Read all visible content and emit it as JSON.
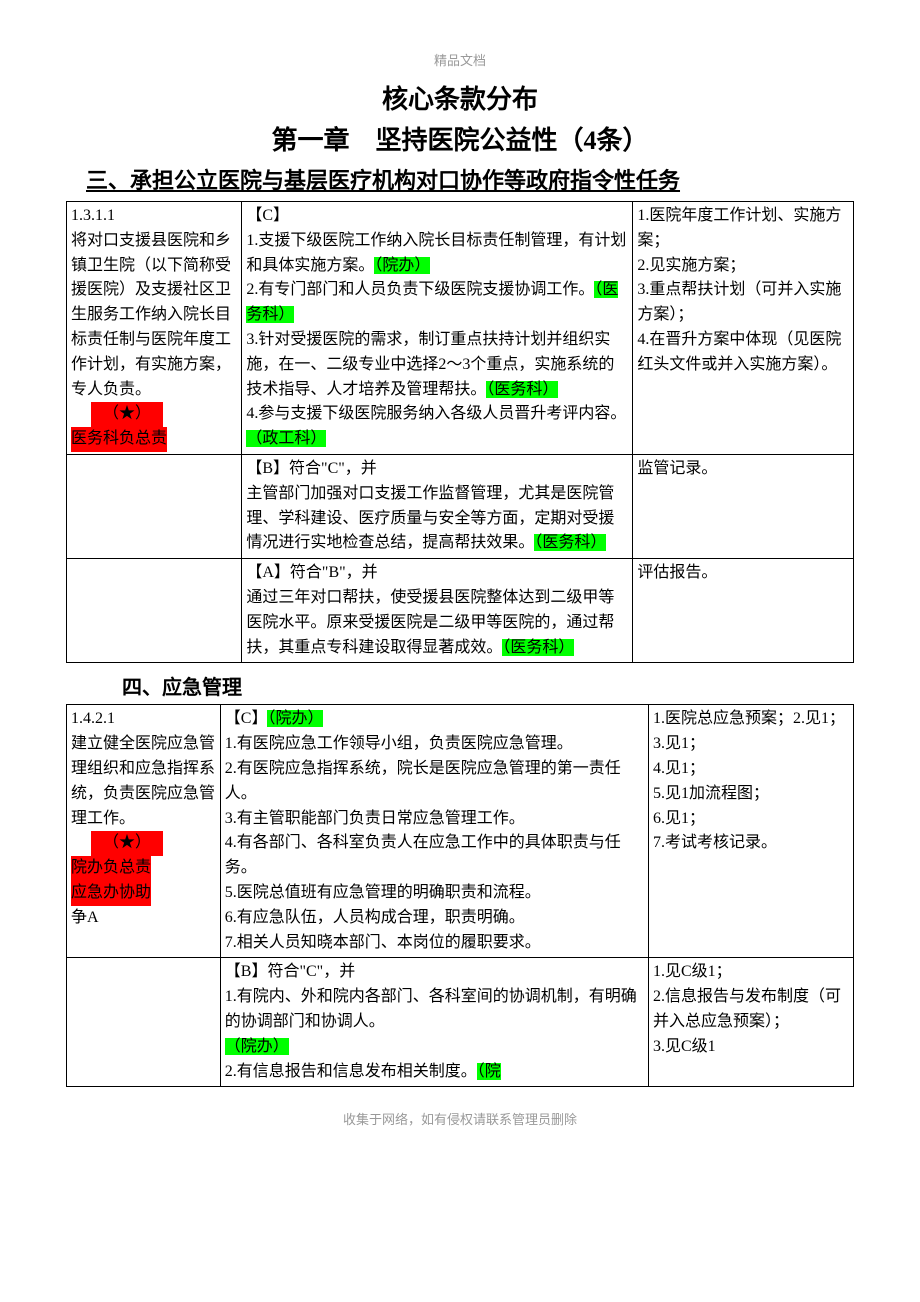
{
  "header_small": "精品文档",
  "title1": "核心条款分布",
  "title2": "第一章　坚持医院公益性（4条）",
  "section3_heading": "三、承担公立医院与基层医疗机构对口协作等政府指令性任务",
  "t1": {
    "r1": {
      "left_p1": "1.3.1.1",
      "left_p2": "将对口支援县医院和乡镇卫生院（以下简称受援医院）及支援社区卫生服务工作纳入院长目标责任制与医院年度工作计划，有实施方案，专人负责。",
      "star": "（★）",
      "left_tag": "医务科负总责",
      "mid_h": "【C】",
      "mid_1a": "1.支援下级医院工作纳入院长目标责任制管理，有计划和具体实施方案。",
      "mid_1_tag": "（院办）",
      "mid_2a": "2.有专门部门和人员负责下级医院支援协调工作。",
      "mid_2_tag": "（医务科）",
      "mid_3a": "3.针对受援医院的需求，制订重点扶持计划并组织实施，在一、二级专业中选择2～3个重点，实施系统的技术指导、人才培养及管理帮扶。",
      "mid_3_tag": "（医务科）",
      "mid_4a": "4.参与支援下级医院服务纳入各级人员晋升考评内容。　",
      "mid_4_tag": "（政工科）",
      "right_1": "1.医院年度工作计划、实施方案；",
      "right_2": "2.见实施方案；",
      "right_3": "3.重点帮扶计划（可并入实施方案）；",
      "right_4": "4.在晋升方案中体现（见医院红头文件或并入实施方案）。"
    },
    "r2": {
      "mid_h": "【B】符合\"C\"，并",
      "mid_1": "主管部门加强对口支援工作监督管理，尤其是医院管理、学科建设、医疗质量与安全等方面，定期对受援情况进行实地检查总结，提高帮扶效果。",
      "mid_tag": "（医务科）",
      "right": "监管记录。"
    },
    "r3": {
      "mid_h": "【A】符合\"B\"，并",
      "mid_1": "通过三年对口帮扶，使受援县医院整体达到二级甲等医院水平。原来受援医院是二级甲等医院的，通过帮扶，其重点专科建设取得显著成效。",
      "mid_tag": "（医务科）",
      "right": "评估报告。"
    }
  },
  "section4_heading": "四、应急管理",
  "t2": {
    "r1": {
      "left_p1": "1.4.2.1",
      "left_p2": "建立健全医院应急管理组织和应急指挥系统，负责医院应急管理工作。",
      "star": "（★）",
      "left_tag1": "院办负总责",
      "left_tag2": "应急办协助",
      "left_p3": "争A",
      "mid_h_pre": "【C】",
      "mid_h_tag": "（院办）",
      "mid_1": "1.有医院应急工作领导小组，负责医院应急管理。",
      "mid_2": "2.有医院应急指挥系统，院长是医院应急管理的第一责任人。",
      "mid_3": "3.有主管职能部门负责日常应急管理工作。",
      "mid_4": "4.有各部门、各科室负责人在应急工作中的具体职责与任务。",
      "mid_5": "5.医院总值班有应急管理的明确职责和流程。",
      "mid_6": "6.有应急队伍，人员构成合理，职责明确。",
      "mid_7": "7.相关人员知晓本部门、本岗位的履职要求。",
      "right_1": "1.医院总应急预案；2.见1；",
      "right_3": "3.见1；",
      "right_4": "4.见1；",
      "right_5": "5.见1加流程图；",
      "right_6": "6.见1；",
      "right_7": "7.考试考核记录。"
    },
    "r2": {
      "mid_h": "【B】符合\"C\"，并",
      "mid_1a": "1.有院内、外和院内各部门、各科室间的协调机制，有明确的协调部门和协调人。",
      "mid_1_tag": "（院办）",
      "mid_2a": "2.有信息报告和信息发布相关制度。",
      "mid_2_tag": "（院",
      "right_1": "1.见C级1；",
      "right_2": "2.信息报告与发布制度（可并入总应急预案）；",
      "right_3": "3.见C级1"
    }
  },
  "footer": "收集于网络，如有侵权请联系管理员删除",
  "colors": {
    "highlight_red": "#ff0000",
    "highlight_green": "#00ff00",
    "text_muted": "#999999",
    "border": "#000000",
    "background": "#ffffff"
  }
}
